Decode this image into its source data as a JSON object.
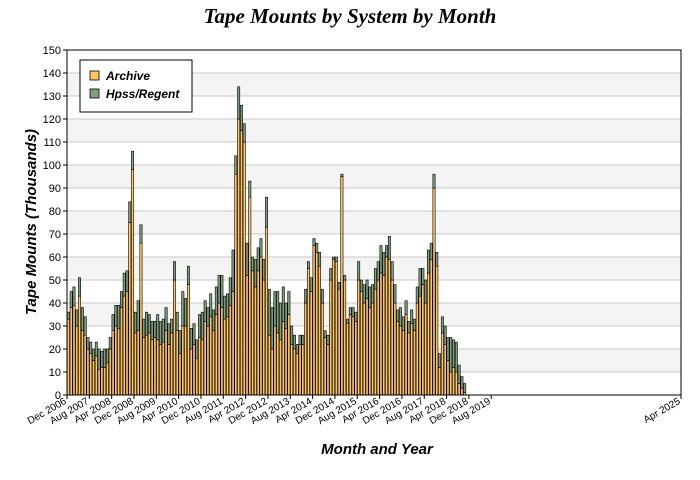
{
  "chart_data": {
    "type": "bar",
    "stacked": true,
    "title": "Tape Mounts by System by Month",
    "xlabel": "Month and Year",
    "ylabel": "Tape Mounts (Thousands)",
    "ylim": [
      0,
      150
    ],
    "yticks": [
      0,
      10,
      20,
      30,
      40,
      50,
      60,
      70,
      80,
      90,
      100,
      110,
      120,
      130,
      140,
      150
    ],
    "xlim": [
      "2006-12",
      "2025-04"
    ],
    "xticks": [
      "Dec 2006",
      "Aug 2007",
      "Apr 2008",
      "Dec 2008",
      "Aug 2009",
      "Apr 2010",
      "Dec 2010",
      "Aug 2011",
      "Apr 2012",
      "Dec 2012",
      "Aug 2013",
      "Apr 2014",
      "Dec 2014",
      "Aug 2015",
      "Apr 2016",
      "Dec 2016",
      "Aug 2017",
      "Apr 2018",
      "Dec 2018",
      "Aug 2019",
      "Apr 2025"
    ],
    "grid": true,
    "legend_position": "top-left",
    "start_month": "2006-12",
    "series": [
      {
        "name": "Archive",
        "color": "#ffc466",
        "values": [
          33,
          38,
          39,
          30,
          43,
          28,
          26,
          20,
          18,
          15,
          17,
          11,
          12,
          12,
          14,
          20,
          28,
          30,
          29,
          38,
          43,
          45,
          75,
          98,
          27,
          28,
          66,
          25,
          26,
          27,
          24,
          25,
          24,
          22,
          23,
          28,
          22,
          27,
          50,
          28,
          18,
          30,
          30,
          48,
          20,
          22,
          16,
          25,
          24,
          32,
          30,
          34,
          28,
          35,
          40,
          38,
          33,
          34,
          39,
          45,
          96,
          120,
          115,
          110,
          52,
          86,
          54,
          47,
          54,
          60,
          50,
          73,
          26,
          20,
          30,
          27,
          24,
          32,
          29,
          35,
          22,
          20,
          18,
          22,
          22,
          40,
          55,
          45,
          65,
          62,
          56,
          40,
          25,
          22,
          50,
          59,
          58,
          46,
          95,
          50,
          31,
          35,
          34,
          32,
          50,
          45,
          40,
          42,
          38,
          40,
          46,
          50,
          53,
          52,
          60,
          59,
          50,
          40,
          32,
          30,
          28,
          35,
          27,
          31,
          28,
          40,
          43,
          48,
          40,
          53,
          59,
          90,
          56,
          12,
          27,
          22,
          15,
          10,
          12,
          10,
          5,
          3,
          1
        ]
      },
      {
        "name": "Hpss/Regent",
        "color": "#7fa07f",
        "values": [
          3,
          7,
          8,
          7,
          8,
          10,
          8,
          5,
          5,
          5,
          6,
          9,
          7,
          8,
          6,
          5,
          7,
          9,
          10,
          7,
          10,
          9,
          9,
          8,
          9,
          13,
          8,
          8,
          10,
          8,
          8,
          7,
          11,
          10,
          10,
          10,
          9,
          6,
          8,
          8,
          10,
          15,
          12,
          8,
          9,
          9,
          8,
          10,
          12,
          9,
          8,
          10,
          9,
          12,
          12,
          14,
          10,
          10,
          12,
          18,
          8,
          14,
          11,
          8,
          14,
          7,
          6,
          12,
          10,
          8,
          9,
          13,
          20,
          18,
          15,
          18,
          16,
          15,
          11,
          10,
          8,
          6,
          4,
          4,
          4,
          6,
          3,
          6,
          3,
          4,
          6,
          6,
          3,
          4,
          5,
          1,
          2,
          3,
          1,
          2,
          2,
          3,
          4,
          4,
          8,
          5,
          8,
          8,
          9,
          8,
          9,
          8,
          12,
          10,
          5,
          10,
          8,
          8,
          5,
          8,
          6,
          6,
          5,
          6,
          5,
          7,
          12,
          7,
          10,
          10,
          7,
          6,
          6,
          6,
          7,
          8,
          10,
          15,
          12,
          13,
          8,
          5,
          4
        ]
      }
    ]
  }
}
